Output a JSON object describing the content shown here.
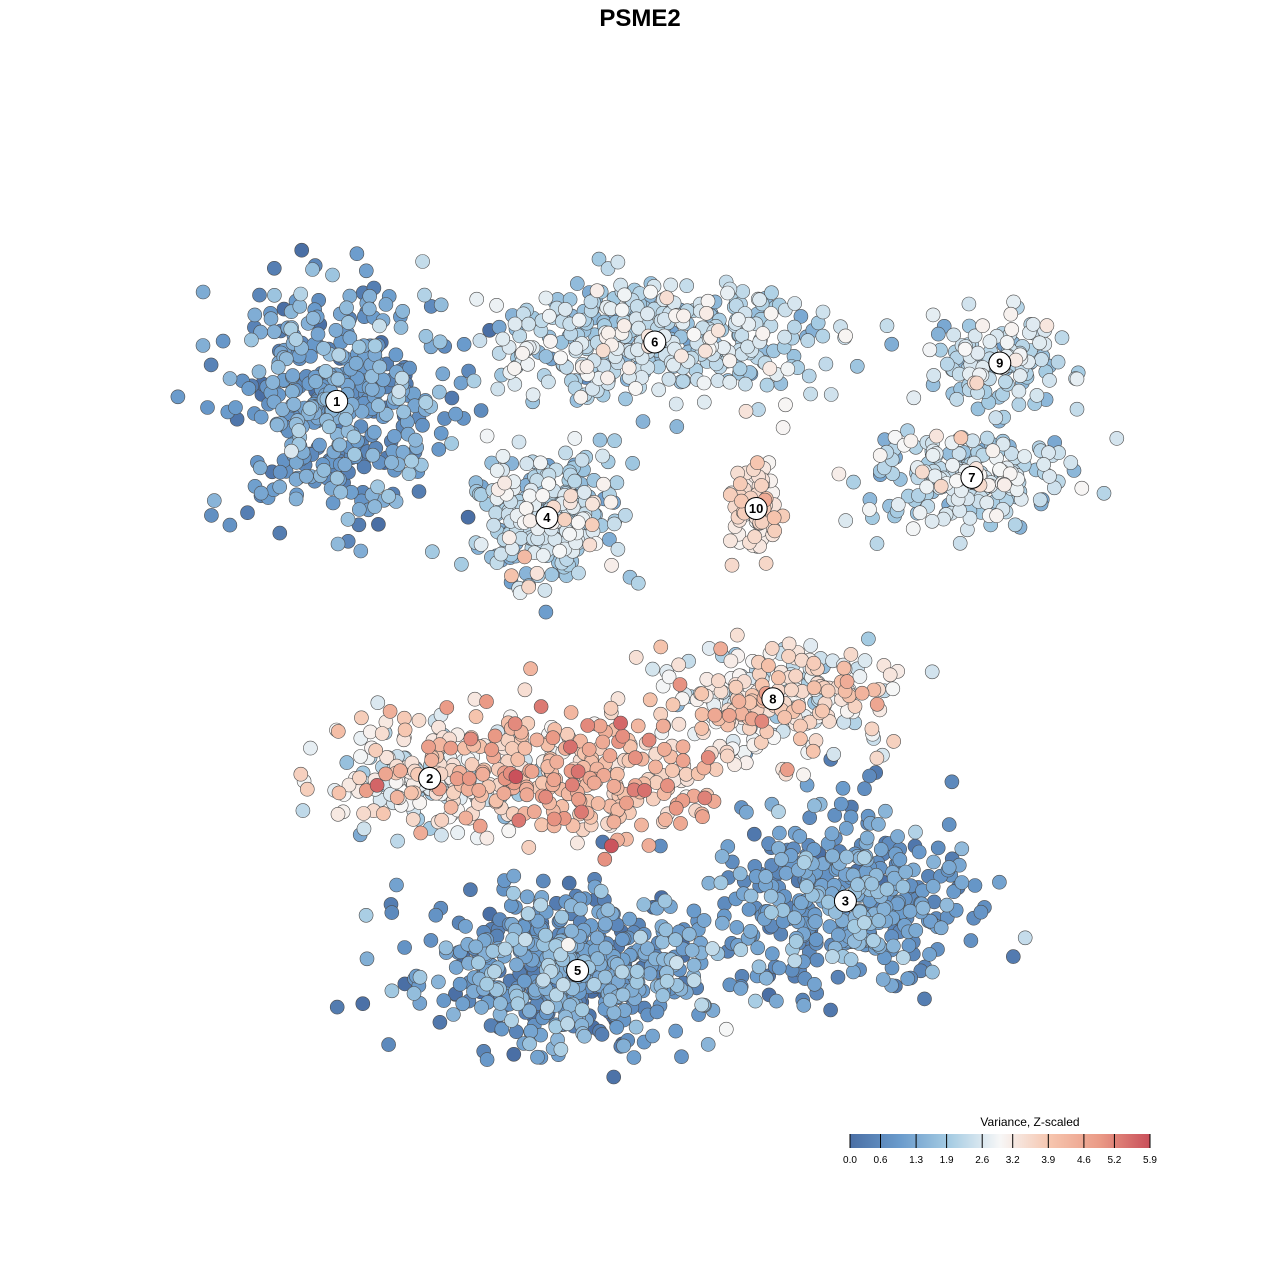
{
  "chart_data": {
    "type": "scatter",
    "title": "PSME2",
    "xlabel": "",
    "ylabel": "",
    "xlim": [
      0,
      100
    ],
    "ylim": [
      0,
      100
    ],
    "grid": false,
    "colormap": [
      "#4a6fa5",
      "#6a9bcc",
      "#a6cce3",
      "#f7f7f7",
      "#f6c5ae",
      "#ea9a86",
      "#c94f5a"
    ],
    "point_stroke": "#4d4d4d",
    "legend": {
      "title": "Variance, Z-scaled",
      "position": "bottom-right",
      "min": 0.0,
      "max": 5.9,
      "ticks": [
        0.0,
        0.6,
        1.3,
        1.9,
        2.6,
        3.2,
        3.9,
        4.6,
        5.2,
        5.9
      ]
    },
    "clusters": [
      {
        "label": "1",
        "x": 14.7,
        "y": 75.8,
        "sx": 6.6,
        "sy": 7.0,
        "n": 420,
        "value_mean": 1.0,
        "value_sd": 0.55
      },
      {
        "label": "2",
        "x": 24.7,
        "y": 34.6,
        "sx": 6.2,
        "sy": 3.3,
        "n": 200,
        "value_mean": 2.9,
        "value_sd": 0.75
      },
      {
        "label": "3",
        "x": 69.4,
        "y": 21.2,
        "sx": 7.6,
        "sy": 5.5,
        "n": 420,
        "value_mean": 1.0,
        "value_sd": 0.5
      },
      {
        "label": "4",
        "x": 37.3,
        "y": 63.1,
        "sx": 4.2,
        "sy": 4.0,
        "n": 300,
        "value_mean": 2.1,
        "value_sd": 0.6
      },
      {
        "label": "5",
        "x": 40.6,
        "y": 13.6,
        "sx": 8.3,
        "sy": 4.6,
        "n": 560,
        "value_mean": 1.0,
        "value_sd": 0.6
      },
      {
        "label": "6",
        "x": 48.9,
        "y": 82.3,
        "sx": 9.8,
        "sy": 3.8,
        "n": 420,
        "value_mean": 2.2,
        "value_sd": 0.5
      },
      {
        "label": "7",
        "x": 83.0,
        "y": 67.5,
        "sx": 5.9,
        "sy": 2.9,
        "n": 230,
        "value_mean": 2.3,
        "value_sd": 0.5
      },
      {
        "label": "8",
        "x": 61.6,
        "y": 43.3,
        "sx": 6.3,
        "sy": 3.4,
        "n": 260,
        "value_mean": 3.1,
        "value_sd": 0.7
      },
      {
        "label": "9",
        "x": 86.0,
        "y": 80.0,
        "sx": 4.4,
        "sy": 3.2,
        "n": 130,
        "value_mean": 2.2,
        "value_sd": 0.5
      },
      {
        "label": "10",
        "x": 59.8,
        "y": 64.1,
        "sx": 1.6,
        "sy": 2.6,
        "n": 70,
        "value_mean": 3.4,
        "value_sd": 0.3
      }
    ],
    "hotspot": {
      "x": 40.5,
      "y": 35.0,
      "sx": 8.5,
      "sy": 3.8,
      "n": 260,
      "value_mean": 4.2,
      "value_sd": 0.6
    }
  }
}
